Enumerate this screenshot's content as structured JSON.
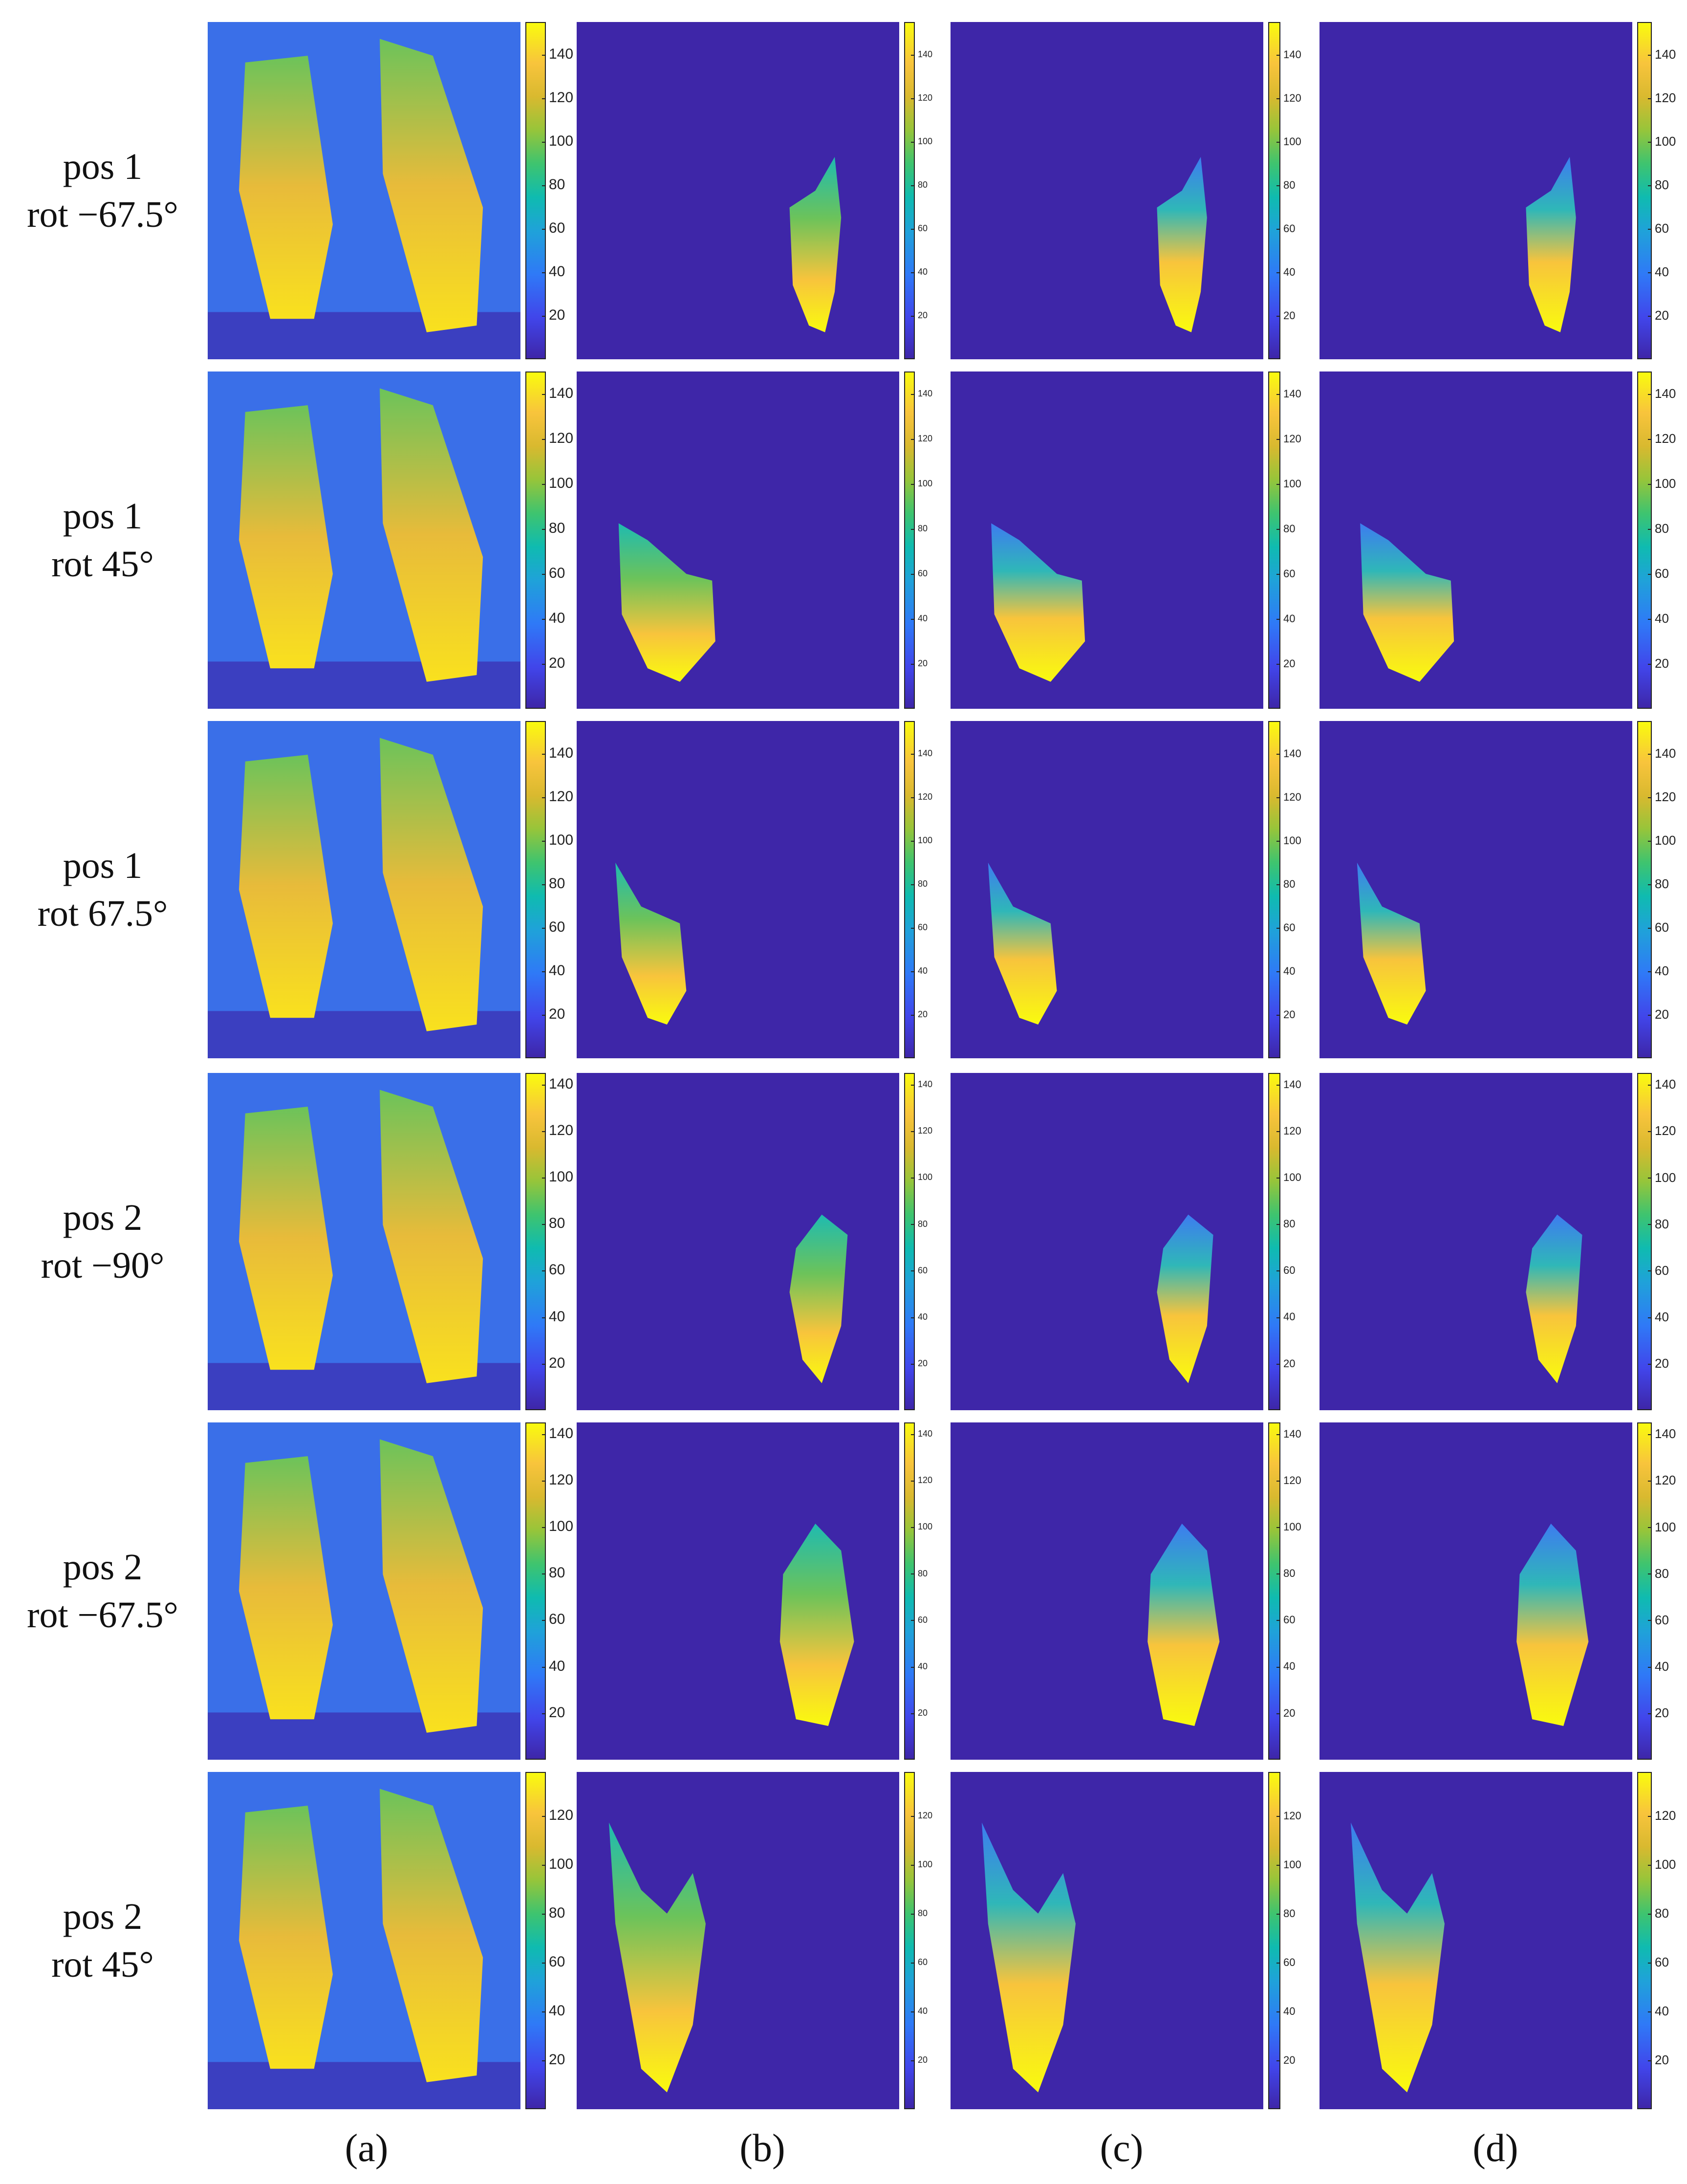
{
  "rows": [
    {
      "pos": "pos 1",
      "rot": "rot −67.5°",
      "ticks": [
        20,
        40,
        60,
        80,
        100,
        120,
        140
      ],
      "max": 155
    },
    {
      "pos": "pos 1",
      "rot": "rot 45°",
      "ticks": [
        20,
        40,
        60,
        80,
        100,
        120,
        140
      ],
      "max": 150
    },
    {
      "pos": "pos 1",
      "rot": "rot 67.5°",
      "ticks": [
        20,
        40,
        60,
        80,
        100,
        120,
        140
      ],
      "max": 155
    },
    {
      "pos": "pos 2",
      "rot": "rot −90°",
      "ticks": [
        20,
        40,
        60,
        80,
        100,
        120,
        140
      ],
      "max": 145
    },
    {
      "pos": "pos 2",
      "rot": "rot −67.5°",
      "ticks": [
        20,
        40,
        60,
        80,
        100,
        120,
        140
      ],
      "max": 145
    },
    {
      "pos": "pos 2",
      "rot": "rot 45°",
      "ticks": [
        20,
        40,
        60,
        80,
        100,
        120
      ],
      "max": 138
    }
  ],
  "columns": [
    "(a)",
    "(b)",
    "(c)",
    "(d)"
  ],
  "colors": {
    "background": "#3e26a8",
    "yellow": "#f9fb0e",
    "orange": "#f8c43c",
    "teal": "#1fbbb0",
    "blue": "#3d7cf0"
  }
}
